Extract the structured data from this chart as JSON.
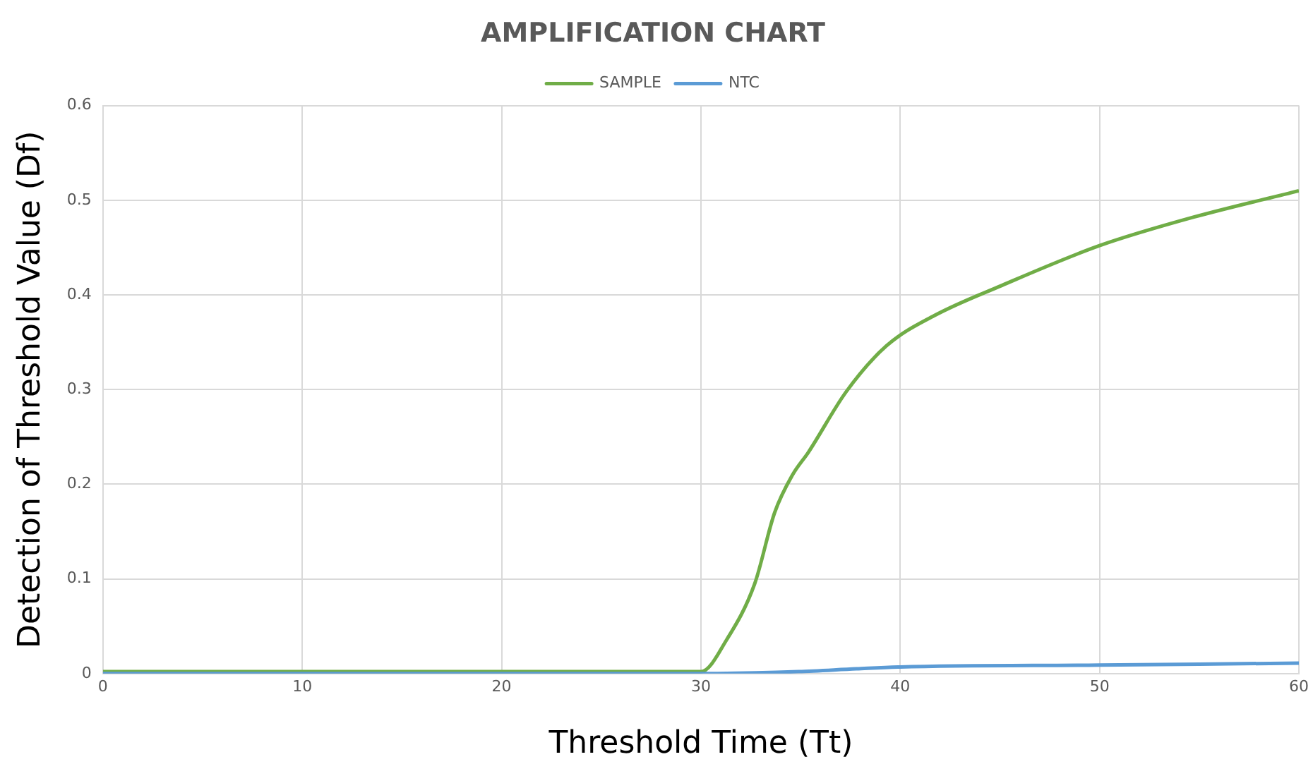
{
  "chart_data": {
    "type": "line",
    "title": "AMPLIFICATION CHART",
    "xlabel": "Threshold Time (Tt)",
    "ylabel": "Detection of Threshold Value (Df)",
    "series": [
      {
        "name": "SAMPLE",
        "color": "#70ad47",
        "x": [
          0,
          10,
          20,
          30,
          31.3,
          32.7,
          33.7,
          34.6,
          35.4,
          37.3,
          39.3,
          41.7,
          45.1,
          50,
          54.7,
          60
        ],
        "values": [
          0.002,
          0.002,
          0.002,
          0.002,
          0.036,
          0.095,
          0.17,
          0.21,
          0.234,
          0.298,
          0.346,
          0.378,
          0.41,
          0.452,
          0.482,
          0.51
        ]
      },
      {
        "name": "NTC",
        "color": "#5b9bd5",
        "x": [
          0,
          10,
          20,
          30,
          34.9,
          37.8,
          40,
          50,
          60
        ],
        "values": [
          0,
          0,
          0,
          0,
          0.002,
          0.005,
          0.007,
          0.009,
          0.011
        ]
      }
    ],
    "xlim": [
      0,
      60
    ],
    "xticks": [
      0,
      10,
      20,
      30,
      40,
      50,
      60
    ],
    "ylim": [
      0,
      0.6
    ],
    "yticks": [
      0,
      0.1,
      0.2,
      0.3,
      0.4,
      0.5,
      0.6
    ],
    "grid": true,
    "legend": "top",
    "marker": "none"
  }
}
